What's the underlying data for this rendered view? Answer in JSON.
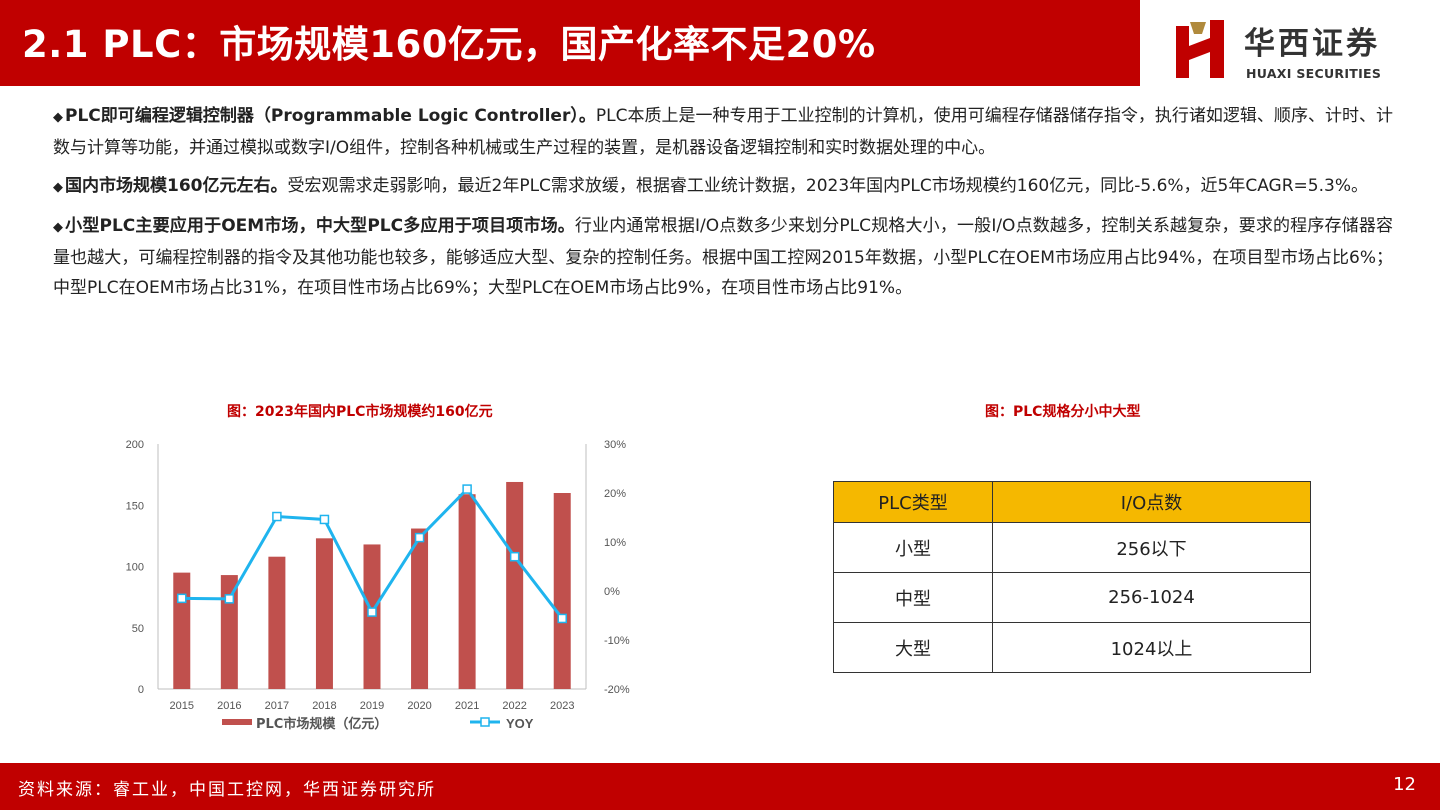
{
  "header": {
    "title": "2.1 PLC：市场规模160亿元，国产化率不足20%",
    "brand_color": "#c00000",
    "logo_cn": "华西证券",
    "logo_en": "HUAXI SECURITIES"
  },
  "paragraphs": [
    {
      "bullet": "◆",
      "lead": "PLC即可编程逻辑控制器（Programmable Logic Controller）。",
      "body": "PLC本质上是一种专用于工业控制的计算机，使用可编程存储器储存指令，执行诸如逻辑、顺序、计时、计数与计算等功能，并通过模拟或数字I/O组件，控制各种机械或生产过程的装置，是机器设备逻辑控制和实时数据处理的中心。"
    },
    {
      "bullet": "◆",
      "lead": "国内市场规模160亿元左右。",
      "body": "受宏观需求走弱影响，最近2年PLC需求放缓，根据睿工业统计数据，2023年国内PLC市场规模约160亿元，同比-5.6%，近5年CAGR=5.3%。"
    },
    {
      "bullet": "◆",
      "lead": "小型PLC主要应用于OEM市场，中大型PLC多应用于项目项市场。",
      "body": "行业内通常根据I/O点数多少来划分PLC规格大小，一般I/O点数越多，控制关系越复杂，要求的程序存储器容量也越大，可编程控制器的指令及其他功能也较多，能够适应大型、复杂的控制任务。根据中国工控网2015年数据，小型PLC在OEM市场应用占比94%，在项目型市场占比6%；中型PLC在OEM市场占比31%，在项目性市场占比69%；大型PLC在OEM市场占比9%，在项目性市场占比91%。"
    }
  ],
  "chart_title": "图：2023年国内PLC市场规模约160亿元",
  "table_title": "图：PLC规格分小中大型",
  "chart_data": {
    "type": "bar",
    "categories": [
      "2015",
      "2016",
      "2017",
      "2018",
      "2019",
      "2020",
      "2021",
      "2022",
      "2023"
    ],
    "series": [
      {
        "name": "PLC市场规模（亿元）",
        "type": "bar",
        "axis": "left",
        "color": "#c0504d",
        "values": [
          95,
          93,
          108,
          123,
          118,
          131,
          159,
          169,
          160
        ]
      },
      {
        "name": "YOY",
        "type": "line",
        "axis": "right",
        "color": "#1fb4ee",
        "values": [
          -1.5,
          -1.6,
          15.2,
          14.6,
          -4.3,
          10.9,
          20.8,
          7.0,
          -5.6
        ]
      }
    ],
    "left_axis": {
      "ylim": [
        0,
        200
      ],
      "ticks": [
        "0",
        "50",
        "100",
        "150",
        "200"
      ]
    },
    "right_axis": {
      "ylim": [
        -20,
        30
      ],
      "ticks": [
        "-20%",
        "-10%",
        "0%",
        "10%",
        "20%",
        "30%"
      ]
    },
    "grid": false,
    "legend_position": "bottom"
  },
  "table": {
    "headers": [
      "PLC类型",
      "I/O点数"
    ],
    "header_color": "#f5b800",
    "rows": [
      [
        "小型",
        "256以下"
      ],
      [
        "中型",
        "256-1024"
      ],
      [
        "大型",
        "1024以上"
      ]
    ]
  },
  "footer": {
    "source": "资料来源：睿工业，中国工控网，华西证券研究所",
    "page": "12"
  }
}
